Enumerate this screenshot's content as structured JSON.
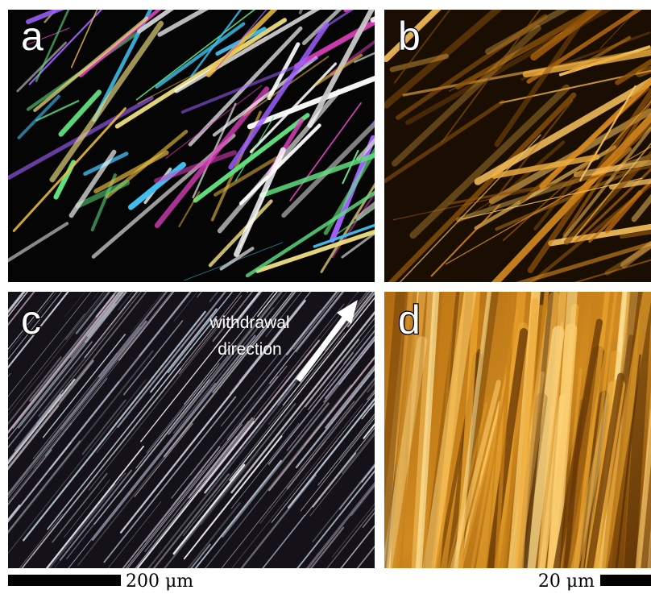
{
  "panels": [
    {
      "label": "a"
    },
    {
      "label": "b"
    },
    {
      "label": "c",
      "annotation": [
        "withdrawal",
        "direction"
      ]
    },
    {
      "label": "d"
    }
  ],
  "scale_bars": [
    {
      "label": "200 μm"
    },
    {
      "label": "20 μm"
    }
  ]
}
